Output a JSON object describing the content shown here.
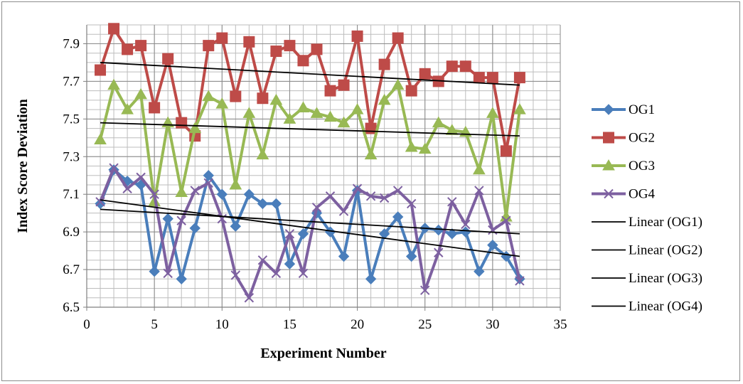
{
  "chart_data": {
    "type": "line",
    "title": "",
    "xlabel": "Experiment Number",
    "ylabel": "Index Score Deviation",
    "xlim": [
      0,
      35
    ],
    "ylim": [
      6.5,
      8.0
    ],
    "x_ticks": [
      "0",
      "5",
      "10",
      "15",
      "20",
      "25",
      "30",
      "35"
    ],
    "y_ticks": [
      "6.5",
      "6.7",
      "6.9",
      "7.1",
      "7.3",
      "7.5",
      "7.7",
      "7.9"
    ],
    "grid": true,
    "legend_position": "right",
    "x": [
      1,
      2,
      3,
      4,
      5,
      6,
      7,
      8,
      9,
      10,
      11,
      12,
      13,
      14,
      15,
      16,
      17,
      18,
      19,
      20,
      21,
      22,
      23,
      24,
      25,
      26,
      27,
      28,
      29,
      30,
      31,
      32
    ],
    "series": [
      {
        "name": "OG1",
        "color": "#4a7ebb",
        "marker": "diamond",
        "values": [
          7.05,
          7.23,
          7.17,
          7.15,
          6.69,
          6.97,
          6.65,
          6.92,
          7.2,
          7.1,
          6.93,
          7.1,
          7.05,
          7.05,
          6.73,
          6.89,
          7.0,
          6.9,
          6.77,
          7.12,
          6.65,
          6.89,
          6.98,
          6.77,
          6.92,
          6.91,
          6.89,
          6.9,
          6.69,
          6.83,
          6.77,
          6.65
        ]
      },
      {
        "name": "OG2",
        "color": "#be4b48",
        "marker": "square",
        "values": [
          7.76,
          7.98,
          7.87,
          7.89,
          7.56,
          7.82,
          7.48,
          7.41,
          7.89,
          7.93,
          7.62,
          7.91,
          7.61,
          7.86,
          7.89,
          7.81,
          7.87,
          7.65,
          7.68,
          7.94,
          7.45,
          7.79,
          7.93,
          7.65,
          7.74,
          7.7,
          7.78,
          7.78,
          7.72,
          7.72,
          7.33,
          7.72
        ]
      },
      {
        "name": "OG3",
        "color": "#98b954",
        "marker": "triangle",
        "values": [
          7.39,
          7.68,
          7.55,
          7.63,
          7.06,
          7.48,
          7.11,
          7.45,
          7.62,
          7.58,
          7.15,
          7.53,
          7.31,
          7.6,
          7.5,
          7.56,
          7.53,
          7.51,
          7.48,
          7.55,
          7.31,
          7.6,
          7.68,
          7.35,
          7.34,
          7.48,
          7.44,
          7.43,
          7.23,
          7.53,
          6.98,
          7.55
        ]
      },
      {
        "name": "OG4",
        "color": "#7d60a0",
        "marker": "x",
        "values": [
          7.06,
          7.24,
          7.13,
          7.19,
          7.1,
          6.68,
          6.96,
          7.12,
          7.16,
          6.97,
          6.67,
          6.55,
          6.75,
          6.68,
          6.89,
          6.68,
          7.03,
          7.09,
          7.01,
          7.13,
          7.09,
          7.08,
          7.12,
          7.05,
          6.59,
          6.79,
          7.06,
          6.94,
          7.12,
          6.91,
          6.96,
          6.64
        ]
      }
    ],
    "trendlines": [
      {
        "name": "Linear (OG1)",
        "color": "#000000",
        "start": [
          1,
          7.07
        ],
        "end": [
          32,
          6.77
        ]
      },
      {
        "name": "Linear (OG2)",
        "color": "#000000",
        "start": [
          1,
          7.8
        ],
        "end": [
          32,
          7.68
        ]
      },
      {
        "name": "Linear (OG3)",
        "color": "#000000",
        "start": [
          1,
          7.48
        ],
        "end": [
          32,
          7.41
        ]
      },
      {
        "name": "Linear (OG4)",
        "color": "#000000",
        "start": [
          1,
          7.02
        ],
        "end": [
          32,
          6.89
        ]
      }
    ]
  }
}
